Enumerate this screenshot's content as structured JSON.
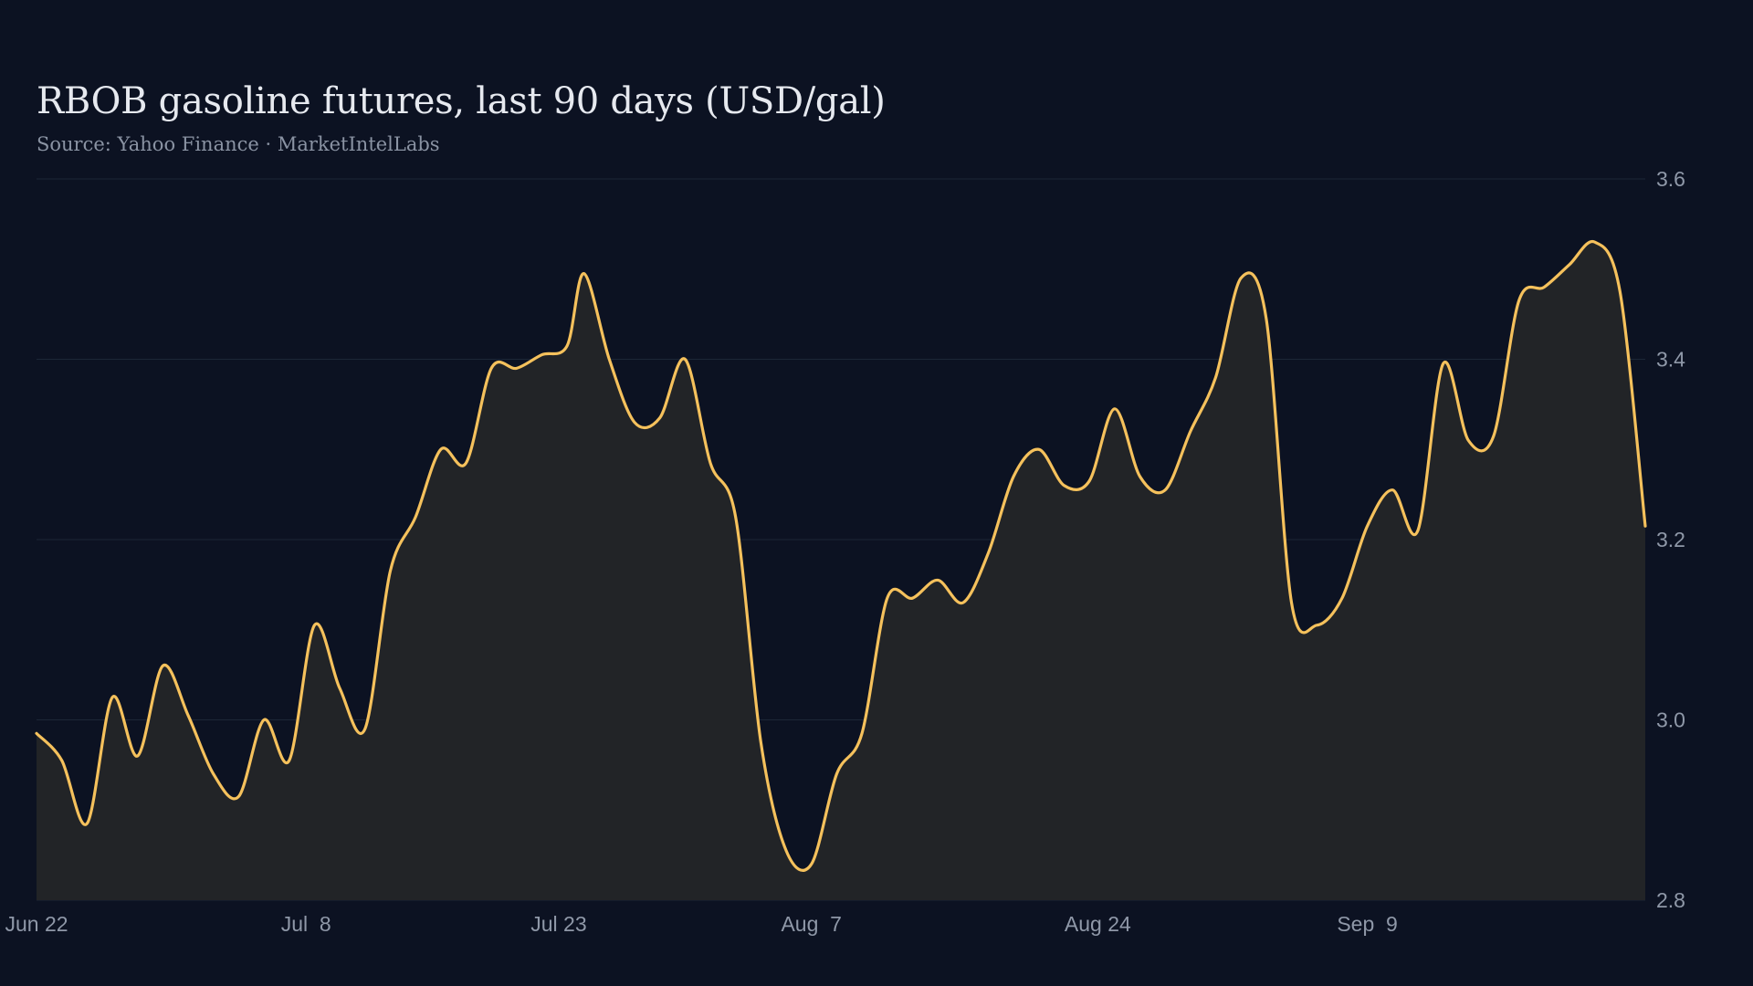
{
  "chart_data": {
    "type": "area",
    "title": "RBOB gasoline futures, last 90 days (USD/gal)",
    "subtitle": "Source: Yahoo Finance · MarketIntelLabs",
    "xlabel": "",
    "ylabel": "",
    "ylim": [
      2.8,
      3.6
    ],
    "yticks": [
      "2.8",
      "3.0",
      "3.2",
      "3.4",
      "3.6"
    ],
    "xticks": [
      {
        "label": "Jun 22",
        "day": 0
      },
      {
        "label": "Jul  8",
        "day": 16
      },
      {
        "label": "Jul 23",
        "day": 31
      },
      {
        "label": "Aug  7",
        "day": 46
      },
      {
        "label": "Aug 24",
        "day": 63
      },
      {
        "label": "Sep  9",
        "day": 79
      }
    ],
    "grid": true,
    "series": [
      {
        "color": "#f5c15c",
        "fill": "#222427",
        "points": [
          [
            0,
            2.985
          ],
          [
            1.5,
            2.955
          ],
          [
            3,
            2.885
          ],
          [
            4.5,
            3.025
          ],
          [
            6,
            2.96
          ],
          [
            7.5,
            3.06
          ],
          [
            9,
            3.005
          ],
          [
            10.5,
            2.94
          ],
          [
            12,
            2.915
          ],
          [
            13.5,
            3.0
          ],
          [
            15,
            2.955
          ],
          [
            16.5,
            3.105
          ],
          [
            18,
            3.035
          ],
          [
            19.5,
            2.99
          ],
          [
            21,
            3.165
          ],
          [
            22.5,
            3.225
          ],
          [
            24,
            3.3
          ],
          [
            25.5,
            3.285
          ],
          [
            27,
            3.39
          ],
          [
            28.5,
            3.39
          ],
          [
            30,
            3.405
          ],
          [
            31.5,
            3.415
          ],
          [
            32.5,
            3.495
          ],
          [
            34,
            3.4
          ],
          [
            35.5,
            3.33
          ],
          [
            37,
            3.335
          ],
          [
            38.5,
            3.4
          ],
          [
            40,
            3.285
          ],
          [
            41.5,
            3.225
          ],
          [
            43,
            2.975
          ],
          [
            44.5,
            2.855
          ],
          [
            46,
            2.84
          ],
          [
            47.5,
            2.94
          ],
          [
            49,
            2.985
          ],
          [
            50.5,
            3.135
          ],
          [
            52,
            3.135
          ],
          [
            53.5,
            3.155
          ],
          [
            55,
            3.13
          ],
          [
            56.5,
            3.185
          ],
          [
            58,
            3.27
          ],
          [
            59.5,
            3.3
          ],
          [
            61,
            3.26
          ],
          [
            62.5,
            3.265
          ],
          [
            64,
            3.345
          ],
          [
            65.5,
            3.27
          ],
          [
            67,
            3.255
          ],
          [
            68.5,
            3.32
          ],
          [
            70,
            3.38
          ],
          [
            71.5,
            3.49
          ],
          [
            73,
            3.445
          ],
          [
            74.5,
            3.13
          ],
          [
            76,
            3.105
          ],
          [
            77.5,
            3.135
          ],
          [
            79,
            3.215
          ],
          [
            80.5,
            3.255
          ],
          [
            82,
            3.21
          ],
          [
            83.5,
            3.395
          ],
          [
            85,
            3.31
          ],
          [
            86.5,
            3.315
          ],
          [
            88,
            3.465
          ],
          [
            89.5,
            3.48
          ],
          [
            91,
            3.505
          ],
          [
            92.5,
            3.53
          ],
          [
            94,
            3.475
          ],
          [
            95.5,
            3.215
          ]
        ]
      }
    ]
  }
}
